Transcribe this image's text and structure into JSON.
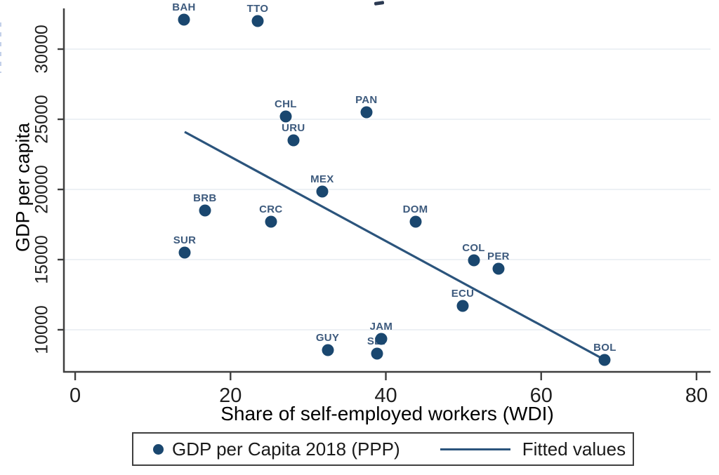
{
  "chart_data": {
    "type": "scatter",
    "title": "",
    "xlabel": "Share of self-employed workers (WDI)",
    "ylabel": "GDP per capita",
    "xlim": [
      -1.45,
      81.81
    ],
    "ylim": [
      7000,
      32850
    ],
    "xticks": [
      0,
      20,
      40,
      60,
      80
    ],
    "yticks": [
      10000,
      15000,
      20000,
      25000,
      30000
    ],
    "grid": "horizontal gridlines only, very light",
    "series": [
      {
        "name": "GDP per Capita 2018 (PPP)",
        "type": "scatter",
        "points": [
          {
            "label": "BAH",
            "x": 14.0,
            "y": 32100
          },
          {
            "label": "TTO",
            "x": 23.5,
            "y": 32000
          },
          {
            "label": "CHL",
            "x": 27.1,
            "y": 25200
          },
          {
            "label": "URU",
            "x": 28.1,
            "y": 23500
          },
          {
            "label": "PAN",
            "x": 37.5,
            "y": 25500
          },
          {
            "label": "MEX",
            "x": 31.8,
            "y": 19850
          },
          {
            "label": "BRB",
            "x": 16.7,
            "y": 18500
          },
          {
            "label": "CRC",
            "x": 25.2,
            "y": 17700
          },
          {
            "label": "DOM",
            "x": 43.8,
            "y": 17700
          },
          {
            "label": "SUR",
            "x": 14.1,
            "y": 15500
          },
          {
            "label": "COL",
            "x": 51.3,
            "y": 14950
          },
          {
            "label": "PER",
            "x": 54.5,
            "y": 14350
          },
          {
            "label": "ECU",
            "x": 49.9,
            "y": 11700
          },
          {
            "label": "JAM",
            "x": 39.4,
            "y": 9350
          },
          {
            "label": "SLV",
            "x": 38.9,
            "y": 8300
          },
          {
            "label": "GUY",
            "x": 32.5,
            "y": 8550
          },
          {
            "label": "BOL",
            "x": 68.2,
            "y": 7850
          }
        ]
      },
      {
        "name": "Fitted values",
        "type": "line",
        "x": [
          14.1,
          68.2
        ],
        "y": [
          24100,
          7850
        ]
      }
    ],
    "legend": {
      "position": "bottom, boxed",
      "entries": [
        {
          "marker": "dot",
          "label": "GDP per Capita 2018 (PPP)"
        },
        {
          "marker": "line",
          "label": "Fitted values"
        }
      ]
    },
    "colors": {
      "marker": "#1a476f",
      "marker_label": "#3d5a7d",
      "fitted_line": "#2b547c",
      "axis_line": "#3f3f3f",
      "tick_label": "#1f1f1f",
      "gridline": "#edf1f5",
      "legend_border": "#3f3f3f",
      "background": "#ffffff"
    }
  }
}
